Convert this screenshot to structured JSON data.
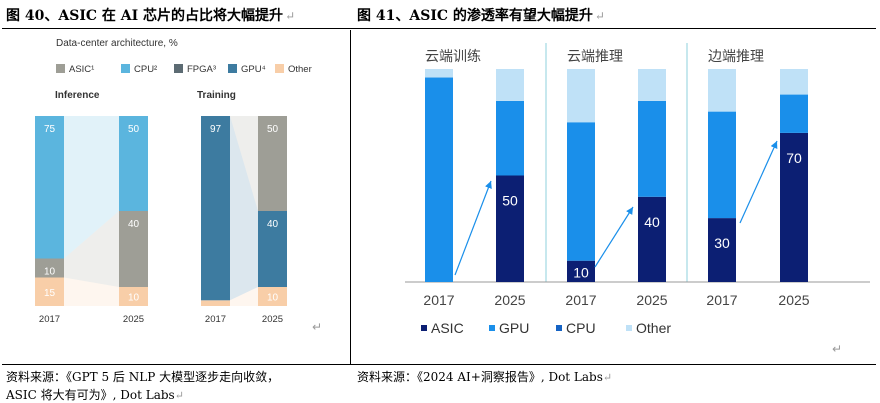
{
  "titles": {
    "left": "图 40、ASIC 在 AI 芯片的占比将大幅提升",
    "right": "图 41、ASIC 的渗透率有望大幅提升",
    "return_mark": "↵"
  },
  "sources": {
    "left_line1": "资料来源：《GPT 5 后 NLP 大模型逐步走向收敛，",
    "left_line2": "ASIC 将大有可为》, Dot Labs",
    "right": "资料来源：《2024 AI+洞察报告》, Dot Labs"
  },
  "chart_data": [
    {
      "type": "bar",
      "title": "Data-center architecture, %",
      "legend": [
        {
          "name": "ASIC¹",
          "color": "#9e9e96"
        },
        {
          "name": "CPU²",
          "color": "#5bb5de"
        },
        {
          "name": "FPGA³",
          "color": "#5c6b73"
        },
        {
          "name": "GPU⁴",
          "color": "#3d7ba0"
        },
        {
          "name": "Other",
          "color": "#f8cea8"
        }
      ],
      "panels": [
        {
          "label": "Inference",
          "categories": [
            "2017",
            "2025"
          ],
          "series": [
            {
              "name": "Other",
              "values": [
                15,
                10
              ],
              "color": "#f8cea8",
              "labels": [
                "15",
                "10"
              ]
            },
            {
              "name": "ASIC",
              "values": [
                10,
                40
              ],
              "color": "#9e9e96",
              "labels": [
                "10",
                "40"
              ]
            },
            {
              "name": "CPU",
              "values": [
                75,
                50
              ],
              "color": "#5bb5de",
              "labels": [
                "75",
                "50"
              ]
            }
          ]
        },
        {
          "label": "Training",
          "categories": [
            "2017",
            "2025"
          ],
          "series": [
            {
              "name": "Other",
              "values": [
                3,
                10
              ],
              "color": "#f8cea8",
              "labels": [
                "",
                "10"
              ]
            },
            {
              "name": "GPU",
              "values": [
                97,
                40
              ],
              "color": "#3d7ba0",
              "labels": [
                "97",
                "40"
              ]
            },
            {
              "name": "ASIC",
              "values": [
                0,
                50
              ],
              "color": "#9e9e96",
              "labels": [
                "",
                "50"
              ]
            }
          ]
        }
      ]
    },
    {
      "type": "bar",
      "stacked": true,
      "groups": [
        "云端训练",
        "云端推理",
        "边端推理"
      ],
      "categories": [
        "2017",
        "2025",
        "2017",
        "2025",
        "2017",
        "2025"
      ],
      "legend": [
        {
          "name": "ASIC",
          "color": "#0c1f73"
        },
        {
          "name": "GPU",
          "color": "#1a8fea"
        },
        {
          "name": "CPU",
          "color": "#1563c4"
        },
        {
          "name": "Other",
          "color": "#bfe1f7"
        }
      ],
      "series": [
        {
          "name": "ASIC",
          "values": [
            0,
            50,
            10,
            40,
            30,
            70
          ],
          "labels": [
            "",
            "50",
            "10",
            "40",
            "30",
            "70"
          ]
        },
        {
          "name": "GPU",
          "values": [
            96,
            35,
            65,
            45,
            50,
            18
          ],
          "labels": [
            "",
            "",
            "",
            "",
            "",
            ""
          ]
        },
        {
          "name": "CPU",
          "values": [
            0,
            0,
            0,
            0,
            0,
            0
          ],
          "labels": [
            "",
            "",
            "",
            "",
            "",
            ""
          ]
        },
        {
          "name": "Other",
          "values": [
            4,
            15,
            25,
            15,
            20,
            12
          ],
          "labels": [
            "",
            "",
            "",
            "",
            "",
            ""
          ]
        }
      ],
      "ylim": [
        0,
        100
      ]
    }
  ]
}
